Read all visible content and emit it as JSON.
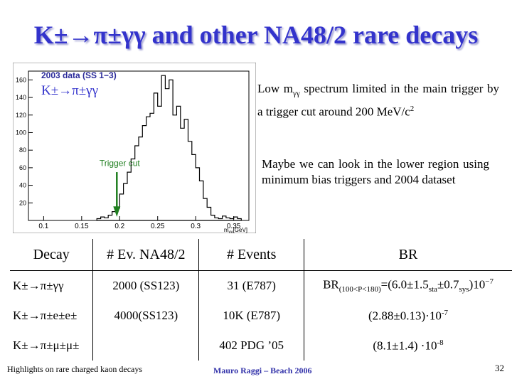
{
  "title": "K±→π±γγ and other NA48/2 rare decays",
  "description": {
    "p1_pre": "Low m",
    "p1_sub": "γγ",
    "p1_mid": " spectrum limited in the main trigger by a trigger cut around 200 MeV/c",
    "p1_sup": "2",
    "p2": "Maybe we can look in the lower region using minimum bias triggers and 2004 dataset"
  },
  "chart_data": {
    "type": "bar",
    "title": "2003 data (SS 1−3)",
    "overlay_label": "K±→π±γγ",
    "annotation": "Trigger cut",
    "annotation_x": 0.2,
    "xlabel": "m",
    "xlabel_sub": "γγ",
    "xlabel_unit": "[GeV]",
    "xlim": [
      0.08,
      0.37
    ],
    "ylim": [
      0,
      170
    ],
    "xticks": [
      0.1,
      0.15,
      0.2,
      0.25,
      0.3,
      0.35
    ],
    "xtick_labels": [
      "0.1",
      "0.15",
      "0.2",
      "0.25",
      "0.3",
      "0.35"
    ],
    "yticks": [
      20,
      40,
      60,
      80,
      100,
      120,
      140,
      160
    ],
    "ytick_labels": [
      "20",
      "40",
      "60",
      "80",
      "100",
      "120",
      "140",
      "160"
    ],
    "bin_width": 0.005,
    "bin_starts": [
      0.17,
      0.175,
      0.18,
      0.185,
      0.19,
      0.195,
      0.2,
      0.205,
      0.21,
      0.215,
      0.22,
      0.225,
      0.23,
      0.235,
      0.24,
      0.245,
      0.25,
      0.255,
      0.26,
      0.265,
      0.27,
      0.275,
      0.28,
      0.285,
      0.29,
      0.295,
      0.3,
      0.305,
      0.31,
      0.315,
      0.32,
      0.325,
      0.33,
      0.335,
      0.34,
      0.345,
      0.35,
      0.355
    ],
    "values": [
      2,
      4,
      3,
      6,
      10,
      14,
      30,
      42,
      55,
      70,
      85,
      95,
      108,
      118,
      122,
      145,
      130,
      165,
      150,
      160,
      120,
      130,
      105,
      115,
      90,
      75,
      60,
      45,
      25,
      15,
      6,
      3,
      2,
      5,
      3,
      2,
      4,
      2
    ],
    "colors": {
      "frame": "#7a7a7a",
      "bars": "#000000",
      "title": "#2a2a9a",
      "label": "#3333cc",
      "annotation": "#207f20"
    }
  },
  "table": {
    "headers": [
      "Decay",
      "# Ev. NA48/2",
      "# Events",
      "BR"
    ],
    "rows": [
      {
        "decay": "K±→π±γγ",
        "ev": "2000 (SS123)",
        "events": "31 (E787)",
        "br_pre": "BR",
        "br_sub1": "(100<P<180)",
        "br_mid1": "=(6.0±1.5",
        "br_sub2": "sta",
        "br_mid2": "±0.7",
        "br_sub3": "sys",
        "br_mid3": ")10",
        "br_sup": "−7"
      },
      {
        "decay": "K±→π±e±e±",
        "ev": "4000(SS123)",
        "events": "10K (E787)",
        "br_pre": "(2.88±0.13)·10",
        "br_sup": "-7"
      },
      {
        "decay": "K±→π±μ±μ±",
        "ev": "",
        "events": "402 PDG ’05",
        "br_pre": "(8.1±1.4) ·10",
        "br_sup": "-8"
      }
    ]
  },
  "footer": {
    "left": "Highlights on rare charged kaon decays",
    "center": "Mauro Raggi – Beach 2006",
    "page": "32"
  }
}
